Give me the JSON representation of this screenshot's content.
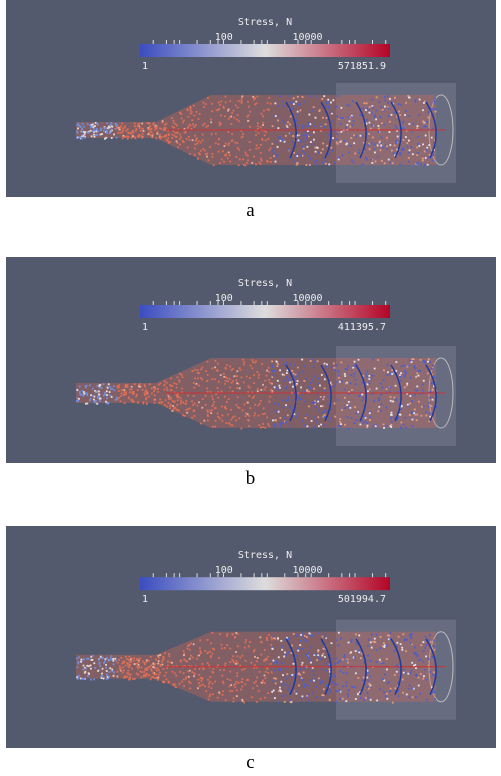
{
  "panels": [
    {
      "colorbar_title": "Stress,  N",
      "tick_labels": [
        100,
        10000
      ],
      "min": 1,
      "max": "571851.9",
      "caption": "a"
    },
    {
      "colorbar_title": "Stress,  N",
      "tick_labels": [
        100,
        10000
      ],
      "min": 1,
      "max": "411395.7",
      "caption": "b"
    },
    {
      "colorbar_title": "Stress,  N",
      "tick_labels": [
        100,
        10000
      ],
      "min": 1,
      "max": "501994.7",
      "caption": "c"
    }
  ]
}
